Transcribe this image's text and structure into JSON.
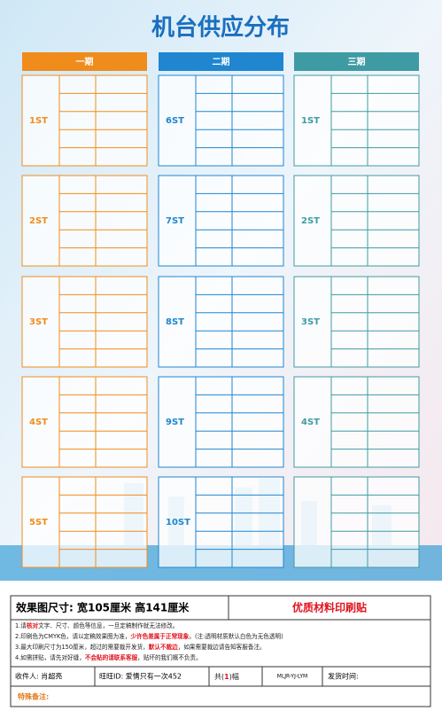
{
  "title": "机台供应分布",
  "columns": [
    {
      "header": "一期",
      "color": "#f08c1c",
      "stations": [
        "1ST",
        "2ST",
        "3ST",
        "4ST",
        "5ST"
      ]
    },
    {
      "header": "二期",
      "color": "#1f86cf",
      "stations": [
        "6ST",
        "7ST",
        "8ST",
        "9ST",
        "10ST"
      ]
    },
    {
      "header": "三期",
      "color": "#3f9ba3",
      "stations": [
        "1ST",
        "2ST",
        "3ST",
        "4ST"
      ]
    }
  ],
  "info": {
    "size": "效果图尺寸: 宽105厘米  高141厘米",
    "material": "优质材料印刷贴",
    "notes": [
      [
        {
          "text": "1.请"
        },
        {
          "text": "核对",
          "red": true
        },
        {
          "text": "文字、尺寸、颜色等信息，一旦定稿制作就无法修改。"
        }
      ],
      [
        {
          "text": "2.印刷色为CMYK色，请以定稿效果图为准，"
        },
        {
          "text": "少许色差属于正常现象",
          "red": true
        },
        {
          "text": "。(注:透明材质默认白色为无色透明)"
        }
      ],
      [
        {
          "text": "3.最大印刷尺寸为150厘米，超过的需要裁开发货，"
        },
        {
          "text": "默认不裁边",
          "red": true
        },
        {
          "text": "，如果需要裁边请告知客服备注。"
        }
      ],
      [
        {
          "text": "4.如需拼贴，请先对好缝，"
        },
        {
          "text": "不会贴的请联系客服",
          "red": true
        },
        {
          "text": "，贴坏的我们概不负责。"
        }
      ]
    ],
    "recipient": "收件人: 肖超亮",
    "wangwang": "旺旺ID: 爱情只有一次452",
    "count": [
      {
        "text": "共("
      },
      {
        "text": "1",
        "red": true
      },
      {
        "text": ")幅"
      }
    ],
    "code": "MLJR-YJ-LYM",
    "ship": "发货时间:",
    "remark": "特殊备注:"
  }
}
